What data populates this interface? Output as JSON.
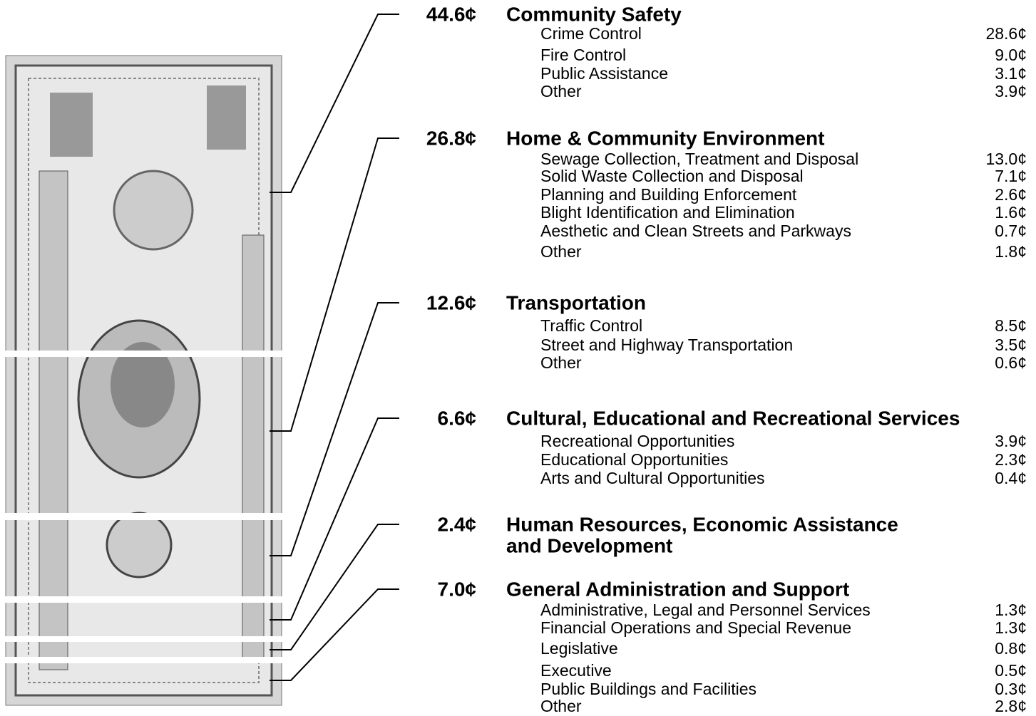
{
  "groups": [
    {
      "amount": "44.6¢",
      "title": [
        "Community Safety"
      ],
      "items": [
        {
          "name": "Crime Control",
          "amount": "28.6¢"
        },
        {
          "name": "Fire Control",
          "amount": "9.0¢"
        },
        {
          "name": "Public Assistance",
          "amount": "3.1¢"
        },
        {
          "name": "Other",
          "amount": "3.9¢"
        }
      ]
    },
    {
      "amount": "26.8¢",
      "title": [
        "Home & Community Environment"
      ],
      "items": [
        {
          "name": "Sewage Collection, Treatment and Disposal",
          "amount": "13.0¢"
        },
        {
          "name": "Solid Waste Collection and Disposal",
          "amount": "7.1¢"
        },
        {
          "name": "Planning and Building Enforcement",
          "amount": "2.6¢"
        },
        {
          "name": "Blight Identification and Elimination",
          "amount": "1.6¢"
        },
        {
          "name": "Aesthetic and Clean Streets and Parkways",
          "amount": "0.7¢"
        },
        {
          "name": "Other",
          "amount": "1.8¢"
        }
      ]
    },
    {
      "amount": "12.6¢",
      "title": [
        "Transportation"
      ],
      "items": [
        {
          "name": "Traffic Control",
          "amount": "8.5¢"
        },
        {
          "name": "Street and Highway Transportation",
          "amount": "3.5¢"
        },
        {
          "name": "Other",
          "amount": "0.6¢"
        }
      ]
    },
    {
      "amount": "6.6¢",
      "title": [
        "Cultural, Educational and Recreational Services"
      ],
      "items": [
        {
          "name": "Recreational Opportunities",
          "amount": "3.9¢"
        },
        {
          "name": "Educational Opportunities",
          "amount": "2.3¢"
        },
        {
          "name": "Arts and Cultural Opportunities",
          "amount": "0.4¢"
        }
      ]
    },
    {
      "amount": "2.4¢",
      "title": [
        "Human Resources, Economic Assistance",
        "and Development"
      ],
      "items": []
    },
    {
      "amount": "7.0¢",
      "title": [
        "General Administration and Support"
      ],
      "items": [
        {
          "name": "Administrative, Legal and Personnel Services",
          "amount": "1.3¢"
        },
        {
          "name": "Financial Operations and Special Revenue",
          "amount": "1.3¢"
        },
        {
          "name": "Legislative",
          "amount": "0.8¢"
        },
        {
          "name": "Executive",
          "amount": "0.5¢"
        },
        {
          "name": "Public Buildings and Facilities",
          "amount": "0.3¢"
        },
        {
          "name": "Other",
          "amount": "2.8¢"
        }
      ]
    }
  ]
}
